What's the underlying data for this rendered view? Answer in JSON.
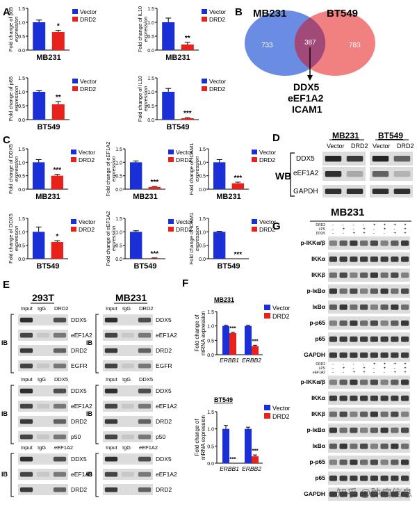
{
  "panel_letters": {
    "A": "A",
    "B": "B",
    "C": "C",
    "D": "D",
    "E": "E",
    "F": "F",
    "G": "G"
  },
  "colors": {
    "vector": "#1a2fd6",
    "drd2": "#e8211b",
    "blot_bg": "#e8e8e8",
    "band": "#222222",
    "venn_left": "#5b7fe0",
    "venn_right": "#ef6b6b"
  },
  "legend": {
    "vector": "Vector",
    "drd2": "DRD2"
  },
  "venn": {
    "left_label": "MB231",
    "right_label": "BT549",
    "left_only": "733",
    "overlap": "387",
    "right_only": "783",
    "genes": [
      "DDX5",
      "eEF1A2",
      "ICAM1"
    ]
  },
  "panel_d": {
    "wb_label": "WB",
    "cell_lines": [
      "MB231",
      "BT549"
    ],
    "lanes": [
      "Vector",
      "DRD2",
      "Vector",
      "DRD2"
    ],
    "rows": [
      "DDX5",
      "eEF1A2",
      "GAPDH"
    ]
  },
  "panel_e": {
    "headers": [
      "293T",
      "MB231"
    ],
    "ib": "IB",
    "blocks": [
      {
        "lanes": [
          "Input",
          "IgG",
          "DRD2"
        ],
        "rows": [
          "DDX5",
          "eEF1A2",
          "DRD2",
          "EGFR"
        ]
      },
      {
        "lanes": [
          "Input",
          "IgG",
          "DDX5"
        ],
        "rows": [
          "DDX5",
          "eEF1A2",
          "DRD2",
          "p50"
        ]
      },
      {
        "lanes": [
          "Input",
          "IgG",
          "eEF1A2"
        ],
        "rows": [
          "DDX5",
          "eEF1A2",
          "DRD2"
        ]
      }
    ]
  },
  "panel_f": {
    "ylabel": "Fold change of mRNA expression",
    "categories": [
      "ERBB1",
      "ERBB2"
    ],
    "charts": [
      {
        "title": "MB231"
      },
      {
        "title": "BT549"
      }
    ]
  },
  "panel_g": {
    "header": "MB231",
    "top": {
      "treat_rows": [
        "DRD2",
        "LPS",
        "DDX5"
      ],
      "rows": [
        "p-IKKα/β",
        "IKKα",
        "IKKβ",
        "p-IκBα",
        "IκBα",
        "p-p65",
        "p65",
        "GAPDH"
      ]
    },
    "bottom": {
      "treat_rows": [
        "DRD2",
        "LPS",
        "eEF1A2"
      ],
      "rows": [
        "p-IKKα/β",
        "IKKα",
        "IKKβ",
        "p-IκBα",
        "IκBα",
        "p-p65",
        "p65",
        "GAPDH"
      ]
    },
    "signs": [
      [
        "-",
        "-",
        "-",
        "-",
        "+",
        "+",
        "+",
        "+"
      ],
      [
        "-",
        "+",
        "-",
        "+",
        "-",
        "+",
        "-",
        "+"
      ],
      [
        "-",
        "-",
        "+",
        "+",
        "-",
        "-",
        "+",
        "+"
      ]
    ]
  },
  "watermark": "知乎 @肿瘤信息",
  "chart_data": [
    {
      "type": "bar",
      "panel": "A",
      "cell": "MB231",
      "ylabel": "Fold change of p65 expression",
      "categories": [
        "Vector",
        "DRD2"
      ],
      "values": [
        1.0,
        0.65
      ],
      "errors": [
        0.08,
        0.06
      ],
      "ylim": [
        0,
        1.5
      ],
      "yticks": [
        "0.0",
        "0.5",
        "1.0",
        "1.5"
      ],
      "sig": "*"
    },
    {
      "type": "bar",
      "panel": "A",
      "cell": "MB231",
      "ylabel": "Fold change of IL10 expression",
      "categories": [
        "Vector",
        "DRD2"
      ],
      "values": [
        1.0,
        0.2
      ],
      "errors": [
        0.15,
        0.08
      ],
      "ylim": [
        0,
        1.5
      ],
      "yticks": [
        "0.0",
        "0.5",
        "1.0",
        "1.5"
      ],
      "sig": "**"
    },
    {
      "type": "bar",
      "panel": "A",
      "cell": "BT549",
      "ylabel": "Fold change of p65 expression",
      "categories": [
        "Vector",
        "DRD2"
      ],
      "values": [
        1.0,
        0.55
      ],
      "errors": [
        0.04,
        0.1
      ],
      "ylim": [
        0,
        1.5
      ],
      "yticks": [
        "0.0",
        "0.5",
        "1.0",
        "1.5"
      ],
      "sig": "**"
    },
    {
      "type": "bar",
      "panel": "A",
      "cell": "BT549",
      "ylabel": "Fold change of IL10 expression",
      "categories": [
        "Vector",
        "DRD2"
      ],
      "values": [
        1.0,
        0.05
      ],
      "errors": [
        0.12,
        0.02
      ],
      "ylim": [
        0,
        1.5
      ],
      "yticks": [
        "0.0",
        "0.5",
        "1.0",
        "1.5"
      ],
      "sig": "***"
    },
    {
      "type": "bar",
      "panel": "C",
      "cell": "MB231",
      "ylabel": "Fold change of DDX5 expression",
      "categories": [
        "Vector",
        "DRD2"
      ],
      "values": [
        1.0,
        0.5
      ],
      "errors": [
        0.1,
        0.05
      ],
      "ylim": [
        0,
        1.5
      ],
      "yticks": [
        "0.0",
        "0.5",
        "1.0",
        "1.5"
      ],
      "sig": "***"
    },
    {
      "type": "bar",
      "panel": "C",
      "cell": "MB231",
      "ylabel": "Fold change of eEF1A2 expression",
      "categories": [
        "Vector",
        "DRD2"
      ],
      "values": [
        1.0,
        0.08
      ],
      "errors": [
        0.05,
        0.02
      ],
      "ylim": [
        0,
        1.5
      ],
      "yticks": [
        "0.0",
        "0.5",
        "1.0",
        "1.5"
      ],
      "sig": "***"
    },
    {
      "type": "bar",
      "panel": "C",
      "cell": "MB231",
      "ylabel": "Fold change of ICAM1 expression",
      "categories": [
        "Vector",
        "DRD2"
      ],
      "values": [
        1.0,
        0.22
      ],
      "errors": [
        0.1,
        0.04
      ],
      "ylim": [
        0,
        1.5
      ],
      "yticks": [
        "0.0",
        "0.5",
        "1.0",
        "1.5"
      ],
      "sig": "***"
    },
    {
      "type": "bar",
      "panel": "C",
      "cell": "BT549",
      "ylabel": "Fold change of DDX5 expression",
      "categories": [
        "Vector",
        "DRD2"
      ],
      "values": [
        1.0,
        0.62
      ],
      "errors": [
        0.18,
        0.05
      ],
      "ylim": [
        0,
        1.5
      ],
      "yticks": [
        "0.0",
        "0.5",
        "1.0",
        "1.5"
      ],
      "sig": "*"
    },
    {
      "type": "bar",
      "panel": "C",
      "cell": "BT549",
      "ylabel": "Fold change of eEF1A2 expression",
      "categories": [
        "Vector",
        "DRD2"
      ],
      "values": [
        1.0,
        0.02
      ],
      "errors": [
        0.04,
        0.01
      ],
      "ylim": [
        0,
        1.5
      ],
      "yticks": [
        "0.0",
        "0.5",
        "1.0",
        "1.5"
      ],
      "sig": "***"
    },
    {
      "type": "bar",
      "panel": "C",
      "cell": "BT549",
      "ylabel": "Fold change of ICAM1 expression",
      "categories": [
        "Vector",
        "DRD2"
      ],
      "values": [
        1.0,
        0.0
      ],
      "errors": [
        0.02,
        0.0
      ],
      "ylim": [
        0,
        1.5
      ],
      "yticks": [
        "0.0",
        "0.5",
        "1.0",
        "1.5"
      ],
      "sig": "***"
    },
    {
      "type": "bar",
      "panel": "F",
      "title": "MB231",
      "ylabel": "Fold change of mRNA expression",
      "categories": [
        "ERBB1",
        "ERBB2"
      ],
      "series": [
        {
          "name": "Vector",
          "values": [
            1.0,
            1.0
          ]
        },
        {
          "name": "DRD2",
          "values": [
            0.75,
            0.3
          ]
        }
      ],
      "errors": [
        [
          0.03,
          0.03
        ],
        [
          0.03,
          0.03
        ]
      ],
      "ylim": [
        0,
        1.5
      ],
      "yticks": [
        "0.0",
        "0.5",
        "1.0",
        "1.5"
      ],
      "sig": [
        "***",
        "***"
      ]
    },
    {
      "type": "bar",
      "panel": "F",
      "title": "BT549",
      "ylabel": "Fold change of mRNA expression",
      "categories": [
        "ERBB1",
        "ERBB2"
      ],
      "series": [
        {
          "name": "Vector",
          "values": [
            1.0,
            1.0
          ]
        },
        {
          "name": "DRD2",
          "values": [
            0.0,
            0.2
          ]
        }
      ],
      "errors": [
        [
          0.1,
          0.05
        ],
        [
          0.0,
          0.04
        ]
      ],
      "ylim": [
        0,
        1.5
      ],
      "yticks": [
        "0.0",
        "0.5",
        "1.0",
        "1.5"
      ],
      "sig": [
        "***",
        "***"
      ]
    }
  ]
}
